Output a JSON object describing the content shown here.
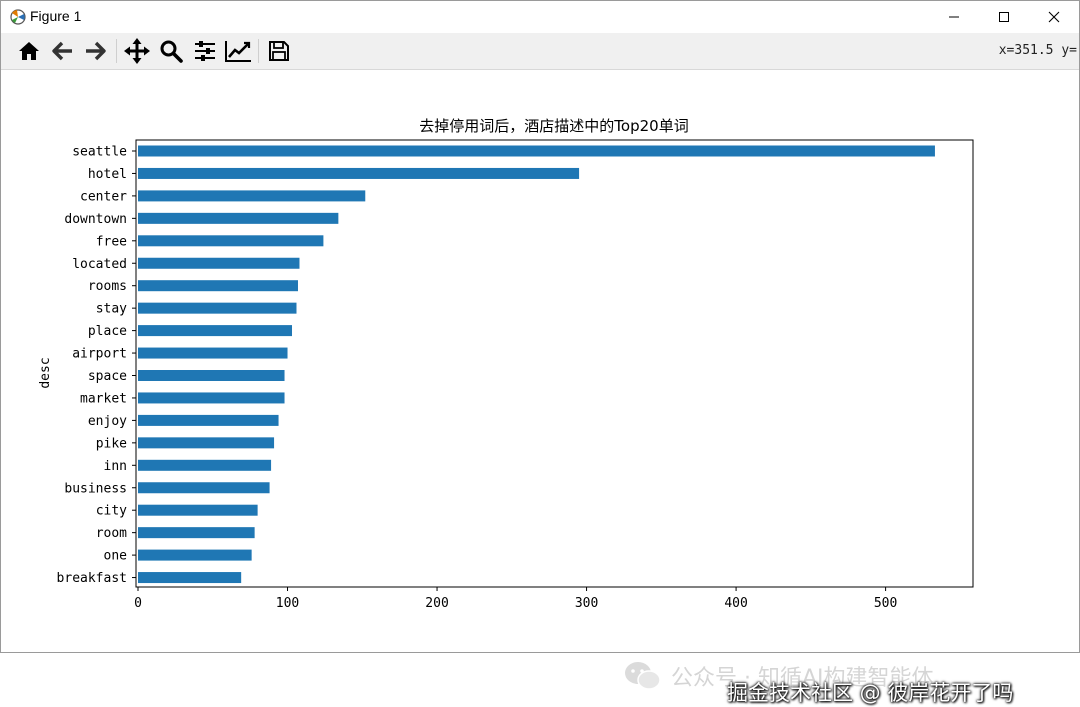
{
  "window": {
    "title": "Figure 1"
  },
  "toolbar": {
    "buttons": [
      {
        "name": "home-icon"
      },
      {
        "name": "back-arrow-icon"
      },
      {
        "name": "forward-arrow-icon"
      },
      {
        "name": "pan-move-icon"
      },
      {
        "name": "zoom-magnifier-icon"
      },
      {
        "name": "subplots-sliders-icon"
      },
      {
        "name": "edit-axis-curve-icon"
      },
      {
        "name": "save-floppy-icon"
      }
    ],
    "coords": "x=351.5 y="
  },
  "chart_data": {
    "type": "bar",
    "orientation": "horizontal",
    "title": "去掉停用词后，酒店描述中的Top20单词",
    "ylabel": "desc",
    "xlabel": "",
    "categories": [
      "seattle",
      "hotel",
      "center",
      "downtown",
      "free",
      "located",
      "rooms",
      "stay",
      "place",
      "airport",
      "space",
      "market",
      "enjoy",
      "pike",
      "inn",
      "business",
      "city",
      "room",
      "one",
      "breakfast"
    ],
    "values": [
      533,
      295,
      152,
      134,
      124,
      108,
      107,
      106,
      103,
      100,
      98,
      98,
      94,
      91,
      89,
      88,
      80,
      78,
      76,
      69
    ],
    "xlim": [
      0,
      560
    ],
    "xticks": [
      0,
      100,
      200,
      300,
      400,
      500
    ],
    "color": "#1f77b4",
    "grid": false
  },
  "watermark": {
    "account": "公众号 · 知循AI构建智能体",
    "site": "掘金技术社区 @ 彼岸花开了吗"
  }
}
